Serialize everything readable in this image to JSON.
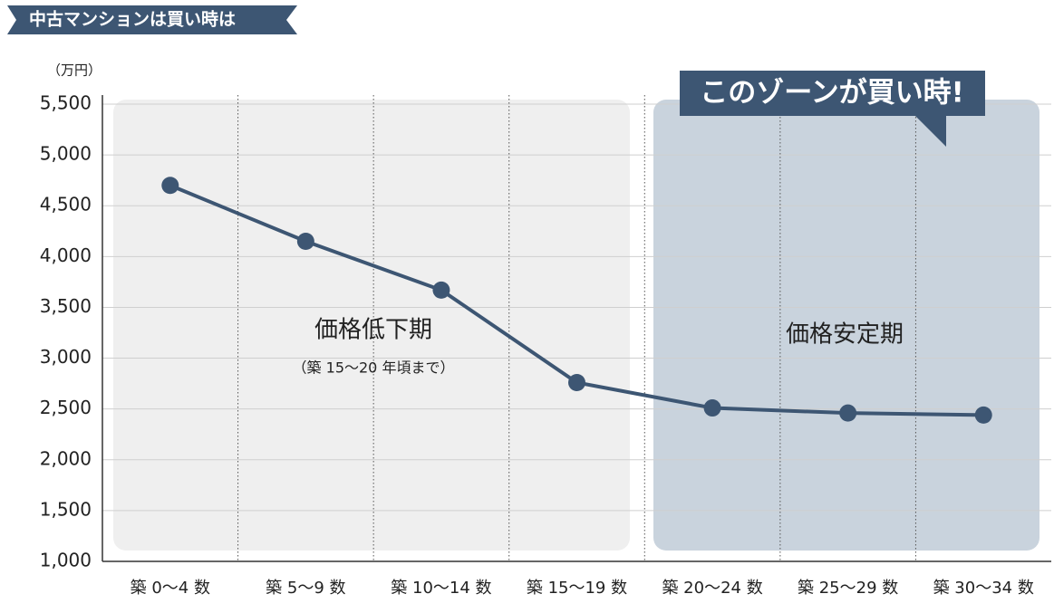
{
  "chart_data": {
    "type": "line",
    "title": "中古マンションは買い時は",
    "y_label": "（万円）",
    "categories": [
      "築 0〜4 数",
      "築 5〜9 数",
      "築 10〜14 数",
      "築 15〜19 数",
      "築 20〜24 数",
      "築 25〜29 数",
      "築 30〜34 数"
    ],
    "series": [
      {
        "color": "#3d5673",
        "values": [
          4700,
          4150,
          3670,
          2760,
          2510,
          2460,
          2440
        ]
      }
    ],
    "ylim": [
      1000,
      5500
    ],
    "yticks": [
      {
        "value": 1000,
        "label": "1,000"
      },
      {
        "value": 1500,
        "label": "1,500"
      },
      {
        "value": 2000,
        "label": "2,000"
      },
      {
        "value": 2500,
        "label": "2,500"
      },
      {
        "value": 3000,
        "label": "3,000"
      },
      {
        "value": 3500,
        "label": "3,500"
      },
      {
        "value": 4000,
        "label": "4,000"
      },
      {
        "value": 4500,
        "label": "4,500"
      },
      {
        "value": 5000,
        "label": "5,000"
      },
      {
        "value": 5500,
        "label": "5,500"
      }
    ],
    "grid": true,
    "annotations": {
      "decline_zone": "価格低下期",
      "decline_note": "（築 15〜20 年頃まで）",
      "stable_zone": "価格安定期",
      "callout": "このゾーンが買い時!"
    }
  }
}
